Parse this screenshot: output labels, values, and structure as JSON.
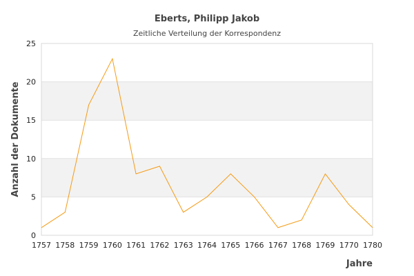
{
  "chart_data": {
    "type": "line",
    "title": "Eberts, Philipp Jakob",
    "subtitle": "Zeitliche Verteilung der Korrespondenz",
    "xlabel": "Jahre",
    "ylabel": "Anzahl der Dokumente",
    "x": [
      "1757",
      "1758",
      "1759",
      "1760",
      "1761",
      "1762",
      "1763",
      "1764",
      "1765",
      "1766",
      "1767",
      "1768",
      "1769",
      "1770",
      "1780"
    ],
    "values": [
      1,
      3,
      17,
      23,
      8,
      9,
      3,
      5,
      8,
      5,
      1,
      2,
      8,
      4,
      1
    ],
    "ylim": [
      0,
      25
    ],
    "yticks": [
      0,
      5,
      10,
      15,
      20,
      25
    ],
    "line_color": "#f59a12",
    "band_color": "#f2f2f2",
    "grid": true,
    "legend": "none"
  }
}
